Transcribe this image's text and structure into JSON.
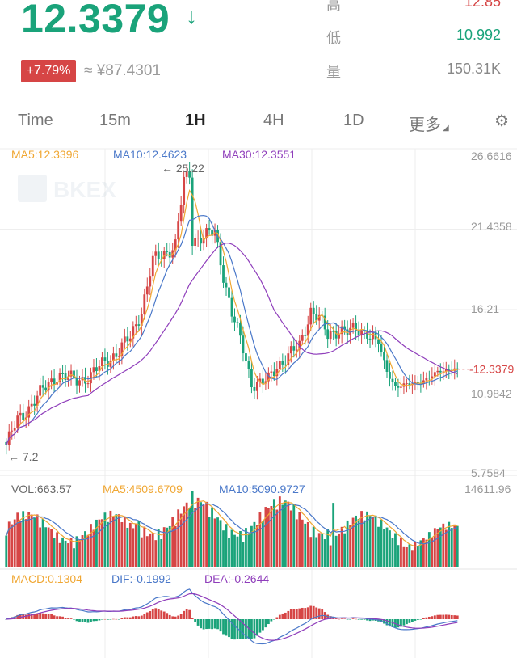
{
  "header": {
    "price": "12.3379",
    "change_badge": "+7.79%",
    "cny_price": "≈ ¥87.4301",
    "stats": [
      {
        "label": "高",
        "value": "12.85",
        "color": "#d64545"
      },
      {
        "label": "低",
        "value": "10.992",
        "color": "#1aa37a"
      },
      {
        "label": "量",
        "value": "150.31K",
        "color": "#888888"
      }
    ]
  },
  "tabs": [
    {
      "label": "Time"
    },
    {
      "label": "15m"
    },
    {
      "label": "1H",
      "active": true
    },
    {
      "label": "4H"
    },
    {
      "label": "1D"
    },
    {
      "label": "更多"
    }
  ],
  "icons": {
    "arrow": "arrow-down-icon",
    "settings": "settings-icon",
    "more_caret": "caret-icon"
  },
  "colors": {
    "up": "#d64545",
    "down": "#1aa37a",
    "ma5": "#f0a733",
    "ma10": "#4a78c9",
    "ma30": "#8f3ebb"
  },
  "chart_data": {
    "type": "candlestick",
    "main": {
      "legend": {
        "ma5": "MA5:12.3396",
        "ma10": "MA10:12.4623",
        "ma30": "MA30:12.3551"
      },
      "y_ticks": [
        "26.6616",
        "21.4358",
        "16.21",
        "10.9842",
        "5.7584"
      ],
      "y_range": [
        5.7584,
        26.6616
      ],
      "high_marker": "25.22",
      "low_marker": "7.2",
      "current_label": "12.3379"
    },
    "volume": {
      "legend": {
        "vol": "VOL:663.57",
        "ma5": "MA5:4509.6709",
        "ma10": "MA10:5090.9727"
      },
      "y_max_label": "14611.96"
    },
    "macd": {
      "legend": {
        "macd": "MACD:0.1304",
        "dif": "DIF:-0.1992",
        "dea": "DEA:-0.2644"
      }
    }
  }
}
